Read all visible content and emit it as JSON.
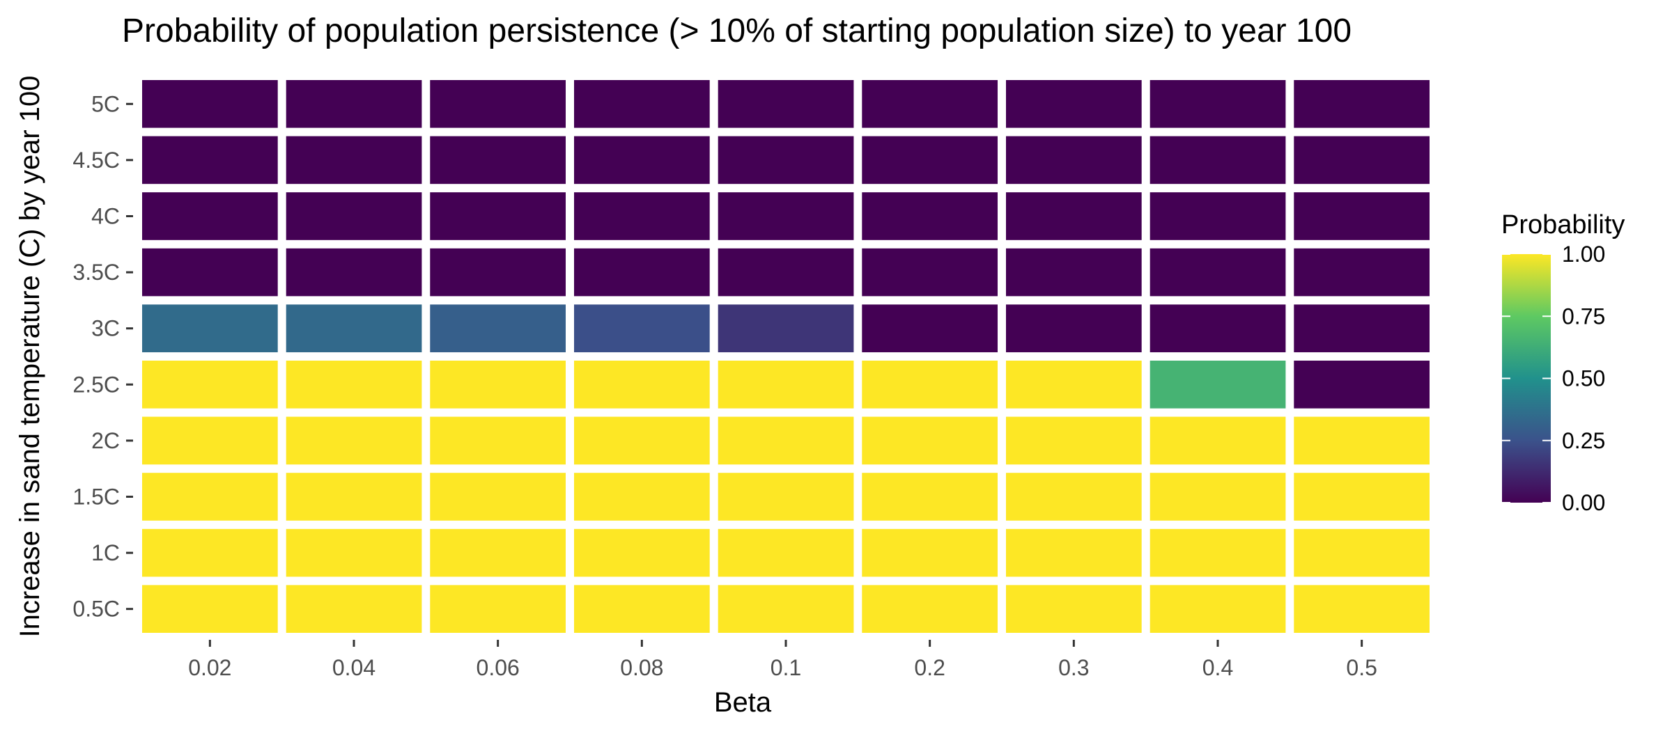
{
  "chart_data": {
    "type": "heatmap",
    "title": "Probability of population persistence (> 10% of starting population size) to year 100",
    "xlabel": "Beta",
    "ylabel": "Increase in sand temperature (C) by year 100",
    "x_categories": [
      "0.02",
      "0.04",
      "0.06",
      "0.08",
      "0.1",
      "0.2",
      "0.3",
      "0.4",
      "0.5"
    ],
    "y_categories": [
      "0.5C",
      "1C",
      "1.5C",
      "2C",
      "2.5C",
      "3C",
      "3.5C",
      "4C",
      "4.5C",
      "5C"
    ],
    "values": [
      [
        1,
        1,
        1,
        1,
        1,
        1,
        1,
        1,
        1
      ],
      [
        1,
        1,
        1,
        1,
        1,
        1,
        1,
        1,
        1
      ],
      [
        1,
        1,
        1,
        1,
        1,
        1,
        1,
        1,
        1
      ],
      [
        1,
        1,
        1,
        1,
        1,
        1,
        1,
        1,
        1
      ],
      [
        1,
        1,
        1,
        1,
        1,
        1,
        1,
        0.65,
        0
      ],
      [
        0.35,
        0.34,
        0.3,
        0.24,
        0.16,
        0,
        0,
        0,
        0
      ],
      [
        0,
        0,
        0,
        0,
        0,
        0,
        0,
        0,
        0
      ],
      [
        0,
        0,
        0,
        0,
        0,
        0,
        0,
        0,
        0
      ],
      [
        0,
        0,
        0,
        0,
        0,
        0,
        0,
        0,
        0
      ],
      [
        0,
        0,
        0,
        0,
        0,
        0,
        0,
        0,
        0
      ]
    ],
    "color_scale": "viridis",
    "color_range": [
      0,
      1
    ],
    "legend": {
      "title": "Probability",
      "ticks": [
        "0.00",
        "0.25",
        "0.50",
        "0.75",
        "1.00"
      ],
      "tick_values": [
        0,
        0.25,
        0.5,
        0.75,
        1
      ],
      "placement": "right"
    },
    "grid": false
  }
}
